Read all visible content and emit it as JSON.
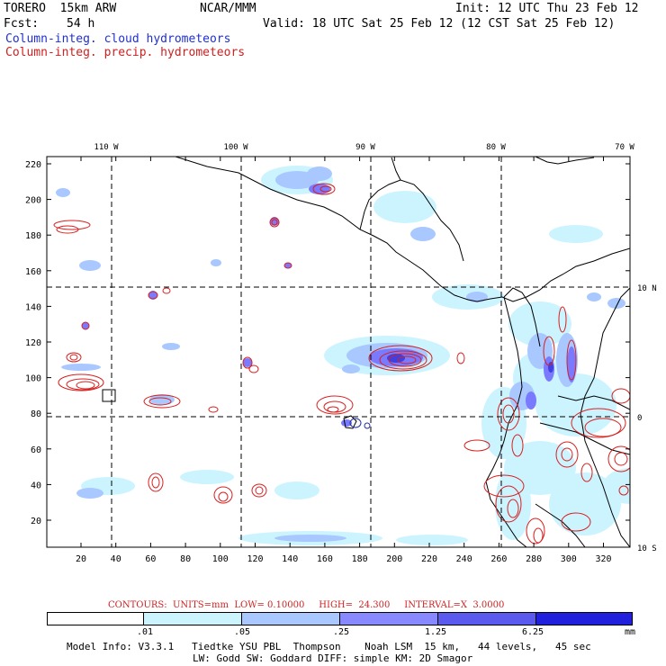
{
  "header": {
    "model": "TORERO  15km ARW",
    "org": "NCAR/MMM",
    "init": "Init: 12 UTC Thu 23 Feb 12",
    "fcst_label": "Fcst:",
    "fcst_hours": "54 h",
    "valid": "Valid: 18 UTC Sat 25 Feb 12 (12 CST Sat 25 Feb 12)",
    "field1": "Column-integ. cloud hydrometeors",
    "field2": "Column-integ. precip. hydrometeors"
  },
  "axes": {
    "lon_labels": [
      "110 W",
      "100 W",
      "90 W",
      "80 W",
      "70 W"
    ],
    "lat_labels": [
      "10 N",
      "0",
      "10 S"
    ],
    "y_ticks": [
      "220",
      "200",
      "180",
      "160",
      "140",
      "120",
      "100",
      "80",
      "60",
      "40",
      "20"
    ],
    "x_ticks": [
      "20",
      "40",
      "60",
      "80",
      "100",
      "120",
      "140",
      "160",
      "180",
      "200",
      "220",
      "240",
      "260",
      "280",
      "300",
      "320"
    ]
  },
  "contour_info": "CONTOURS:  UNITS=mm  LOW= 0.10000     HIGH=  24.300     INTERVAL=X  3.0000",
  "colorbar": {
    "labels": [
      ".01",
      ".05",
      ".25",
      "1.25",
      "6.25"
    ],
    "unit": "mm",
    "colors": [
      "#ffffff",
      "#ccf4ff",
      "#a8c8ff",
      "#8888ff",
      "#5a5aee",
      "#2020dd"
    ]
  },
  "footer": {
    "line1": "Model Info: V3.3.1   Tiedtke YSU PBL  Thompson    Noah LSM  15 km,   44 levels,   45 sec",
    "line2": "LW: Godd SW: Goddard DIFF: simple KM: 2D Smagor"
  }
}
